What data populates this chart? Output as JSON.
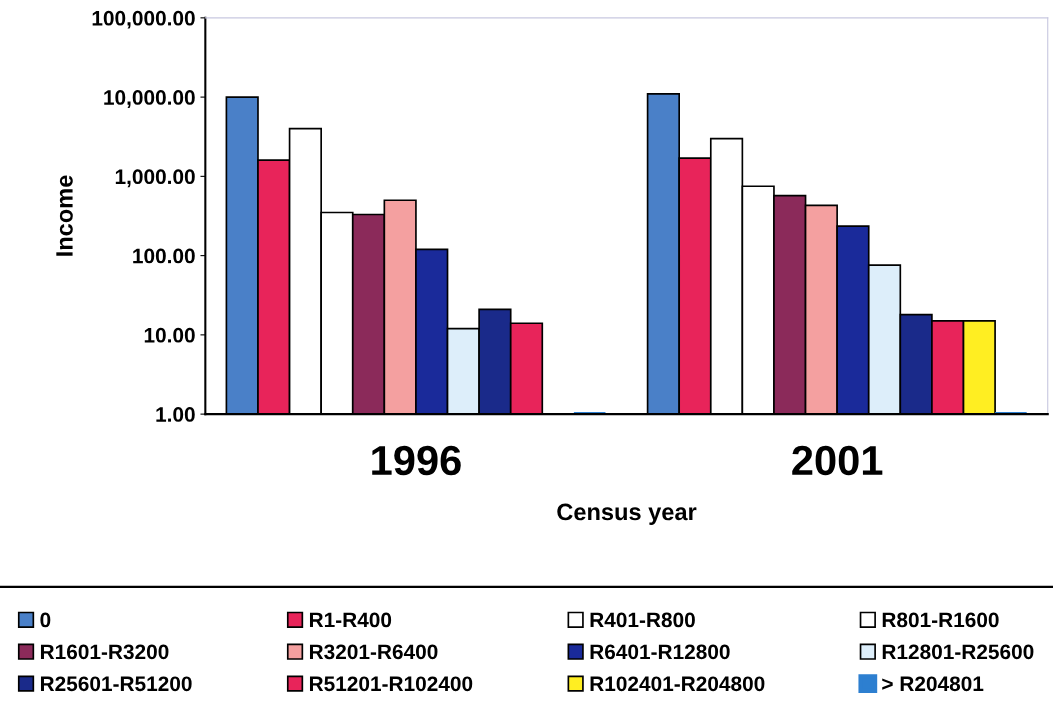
{
  "chart_data": {
    "type": "bar",
    "xlabel": "Census year",
    "ylabel": "Income",
    "categories": [
      "1996",
      "2001"
    ],
    "log": "y",
    "ylim": [
      1,
      100000
    ],
    "yticks": [
      {
        "value": 1,
        "label": "1.00"
      },
      {
        "value": 10,
        "label": "10.00"
      },
      {
        "value": 100,
        "label": "100.00"
      },
      {
        "value": 1000,
        "label": "1,000.00"
      },
      {
        "value": 10000,
        "label": "10,000.00"
      },
      {
        "value": 100000,
        "label": "100,000.00"
      }
    ],
    "grid": false,
    "legend": "bottom",
    "series": [
      {
        "name": "0",
        "color": "#4a80c8",
        "values": [
          10000,
          11000
        ]
      },
      {
        "name": "R1-R400",
        "color": "#e8245a",
        "values": [
          1600,
          1700
        ]
      },
      {
        "name": "R401-R800",
        "color": "#ffffff",
        "values": [
          4000,
          3000
        ]
      },
      {
        "name": "R801-R1600",
        "color": "#ffffff",
        "values": [
          350,
          750
        ]
      },
      {
        "name": "R1601-R3200",
        "color": "#8b2a5a",
        "values": [
          330,
          570
        ]
      },
      {
        "name": "R3201-R6400",
        "color": "#f4a0a0",
        "values": [
          500,
          430
        ]
      },
      {
        "name": "R6401-R12800",
        "color": "#1a2a9a",
        "values": [
          120,
          235
        ]
      },
      {
        "name": "R12801-R25600",
        "color": "#ddeefa",
        "values": [
          12,
          76
        ]
      },
      {
        "name": "R25601-R51200",
        "color": "#1a2a8a",
        "values": [
          21,
          18
        ]
      },
      {
        "name": "R51201-R102400",
        "color": "#e8245a",
        "values": [
          14,
          15
        ]
      },
      {
        "name": "R102401-R204800",
        "color": "#ffee22",
        "values": [
          null,
          15
        ]
      },
      {
        "name": "> R204801",
        "color": "#2d7fd0",
        "values": [
          1,
          1
        ]
      }
    ]
  }
}
